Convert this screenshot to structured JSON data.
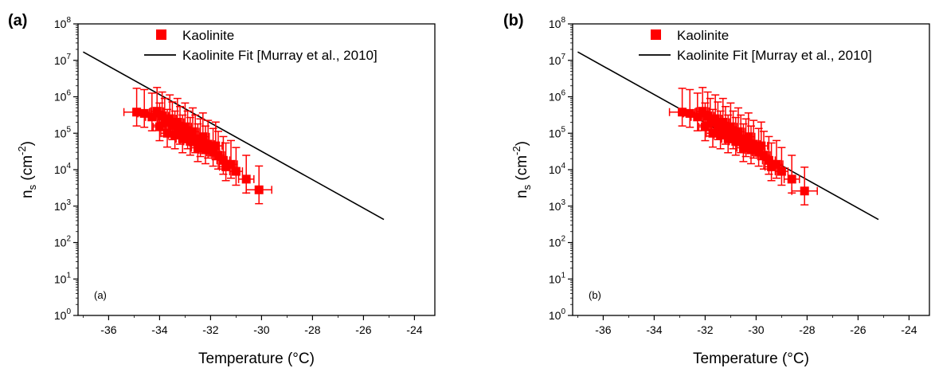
{
  "colors": {
    "data": "#ff0000",
    "fit": "#000000",
    "axis": "#000000"
  },
  "chart_data": [
    {
      "type": "scatter",
      "panel_label": "(a)",
      "inner_label": "(a)",
      "xlabel": "Temperature (°C)",
      "ylabel": {
        "base": "n",
        "sub": "s",
        "paren_open": " (cm",
        "sup": "-2",
        "paren_close": ")"
      },
      "xlim": [
        -37.2,
        -23.2
      ],
      "ylim_log10": [
        0,
        8
      ],
      "log_y": true,
      "x_ticks": [
        -36,
        -34,
        -32,
        -30,
        -28,
        -26,
        -24
      ],
      "y_ticks": [
        {
          "base": "10",
          "exp": "0"
        },
        {
          "base": "10",
          "exp": "1"
        },
        {
          "base": "10",
          "exp": "2"
        },
        {
          "base": "10",
          "exp": "3"
        },
        {
          "base": "10",
          "exp": "4"
        },
        {
          "base": "10",
          "exp": "5"
        },
        {
          "base": "10",
          "exp": "6"
        },
        {
          "base": "10",
          "exp": "7"
        },
        {
          "base": "10",
          "exp": "8"
        }
      ],
      "legend": {
        "placement": "top-right",
        "entries": [
          "Kaolinite",
          "Kaolinite Fit [Murray et al., 2010]"
        ]
      },
      "series": [
        {
          "name": "Kaolinite",
          "marker": "square",
          "points": [
            {
              "x": -34.9,
              "y": 380000,
              "xerr": 0.5
            },
            {
              "x": -34.6,
              "y": 350000
            },
            {
              "x": -34.3,
              "y": 280000
            },
            {
              "x": -34.1,
              "y": 400000
            },
            {
              "x": -34.0,
              "y": 150000
            },
            {
              "x": -33.9,
              "y": 300000
            },
            {
              "x": -33.8,
              "y": 200000
            },
            {
              "x": -33.7,
              "y": 100000
            },
            {
              "x": -33.6,
              "y": 250000
            },
            {
              "x": -33.5,
              "y": 160000
            },
            {
              "x": -33.4,
              "y": 90000
            },
            {
              "x": -33.3,
              "y": 200000
            },
            {
              "x": -33.2,
              "y": 120000
            },
            {
              "x": -33.1,
              "y": 70000
            },
            {
              "x": -33.0,
              "y": 150000
            },
            {
              "x": -32.9,
              "y": 90000
            },
            {
              "x": -32.8,
              "y": 60000
            },
            {
              "x": -32.7,
              "y": 110000
            },
            {
              "x": -32.6,
              "y": 70000
            },
            {
              "x": -32.5,
              "y": 40000
            },
            {
              "x": -32.4,
              "y": 55000
            },
            {
              "x": -32.3,
              "y": 80000
            },
            {
              "x": -32.2,
              "y": 35000
            },
            {
              "x": -32.1,
              "y": 50000
            },
            {
              "x": -31.9,
              "y": 30000
            },
            {
              "x": -31.8,
              "y": 45000
            },
            {
              "x": -31.7,
              "y": 25000
            },
            {
              "x": -31.5,
              "y": 18000
            },
            {
              "x": -31.4,
              "y": 12000
            },
            {
              "x": -31.2,
              "y": 14000
            },
            {
              "x": -31.0,
              "y": 9000
            },
            {
              "x": -30.6,
              "y": 5500,
              "xerr": 0.3
            },
            {
              "x": -30.1,
              "y": 2800,
              "xerr": 0.5
            }
          ]
        },
        {
          "name": "Kaolinite Fit [Murray et al., 2010]",
          "type": "line",
          "x": [
            -37.0,
            -25.2
          ],
          "y": [
            17000000,
            430
          ]
        }
      ]
    },
    {
      "type": "scatter",
      "panel_label": "(b)",
      "inner_label": "(b)",
      "xlabel": "Temperature (°C)",
      "ylabel": {
        "base": "n",
        "sub": "s",
        "paren_open": " (cm",
        "sup": "-2",
        "paren_close": ")"
      },
      "xlim": [
        -37.2,
        -23.2
      ],
      "ylim_log10": [
        0,
        8
      ],
      "log_y": true,
      "x_ticks": [
        -36,
        -34,
        -32,
        -30,
        -28,
        -26,
        -24
      ],
      "y_ticks": [
        {
          "base": "10",
          "exp": "0"
        },
        {
          "base": "10",
          "exp": "1"
        },
        {
          "base": "10",
          "exp": "2"
        },
        {
          "base": "10",
          "exp": "3"
        },
        {
          "base": "10",
          "exp": "4"
        },
        {
          "base": "10",
          "exp": "5"
        },
        {
          "base": "10",
          "exp": "6"
        },
        {
          "base": "10",
          "exp": "7"
        },
        {
          "base": "10",
          "exp": "8"
        }
      ],
      "legend": {
        "placement": "top-right",
        "entries": [
          "Kaolinite",
          "Kaolinite Fit [Murray et al., 2010]"
        ]
      },
      "series": [
        {
          "name": "Kaolinite",
          "marker": "square",
          "points": [
            {
              "x": -32.9,
              "y": 380000,
              "xerr": 0.5
            },
            {
              "x": -32.6,
              "y": 350000
            },
            {
              "x": -32.3,
              "y": 280000
            },
            {
              "x": -32.1,
              "y": 400000
            },
            {
              "x": -32.0,
              "y": 150000
            },
            {
              "x": -31.9,
              "y": 300000
            },
            {
              "x": -31.8,
              "y": 200000
            },
            {
              "x": -31.7,
              "y": 100000
            },
            {
              "x": -31.6,
              "y": 250000
            },
            {
              "x": -31.5,
              "y": 160000
            },
            {
              "x": -31.4,
              "y": 90000
            },
            {
              "x": -31.3,
              "y": 200000
            },
            {
              "x": -31.2,
              "y": 120000
            },
            {
              "x": -31.1,
              "y": 70000
            },
            {
              "x": -31.0,
              "y": 150000
            },
            {
              "x": -30.9,
              "y": 90000
            },
            {
              "x": -30.8,
              "y": 60000
            },
            {
              "x": -30.7,
              "y": 110000
            },
            {
              "x": -30.6,
              "y": 70000
            },
            {
              "x": -30.5,
              "y": 40000
            },
            {
              "x": -30.4,
              "y": 55000
            },
            {
              "x": -30.3,
              "y": 80000
            },
            {
              "x": -30.2,
              "y": 35000
            },
            {
              "x": -30.1,
              "y": 50000
            },
            {
              "x": -29.9,
              "y": 30000
            },
            {
              "x": -29.8,
              "y": 45000
            },
            {
              "x": -29.7,
              "y": 25000
            },
            {
              "x": -29.5,
              "y": 18000
            },
            {
              "x": -29.4,
              "y": 12000
            },
            {
              "x": -29.2,
              "y": 14000
            },
            {
              "x": -29.0,
              "y": 9000
            },
            {
              "x": -28.6,
              "y": 5500,
              "xerr": 0.3
            },
            {
              "x": -28.1,
              "y": 2600,
              "xerr": 0.5
            }
          ]
        },
        {
          "name": "Kaolinite Fit [Murray et al., 2010]",
          "type": "line",
          "x": [
            -37.0,
            -25.2
          ],
          "y": [
            17000000,
            430
          ]
        }
      ]
    }
  ]
}
